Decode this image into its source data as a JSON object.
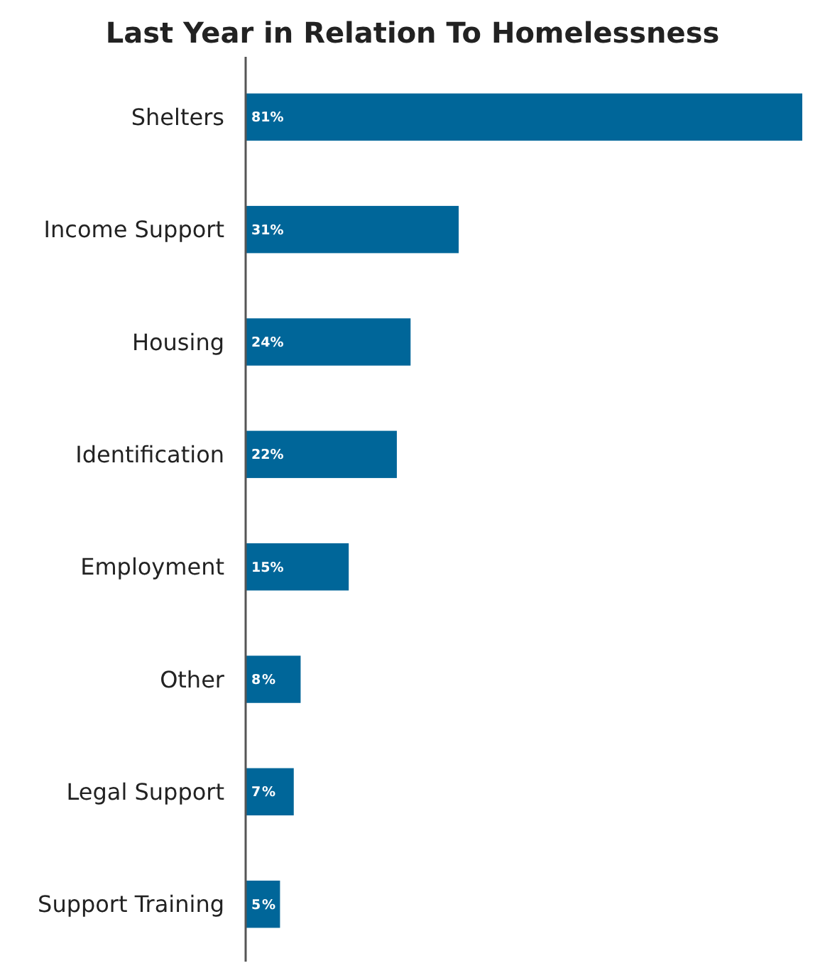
{
  "chart_data": {
    "type": "bar",
    "orientation": "horizontal",
    "title": "Last Year in Relation To Homelessness",
    "categories": [
      "Shelters",
      "Income Support",
      "Housing",
      "Identification",
      "Employment",
      "Other",
      "Legal Support",
      "Support Training"
    ],
    "values": [
      81,
      31,
      24,
      22,
      15,
      8,
      7,
      5
    ],
    "value_labels": [
      "81%",
      "31%",
      "24%",
      "22%",
      "15%",
      "8%",
      "7%",
      "5%"
    ],
    "color": "#006699"
  }
}
